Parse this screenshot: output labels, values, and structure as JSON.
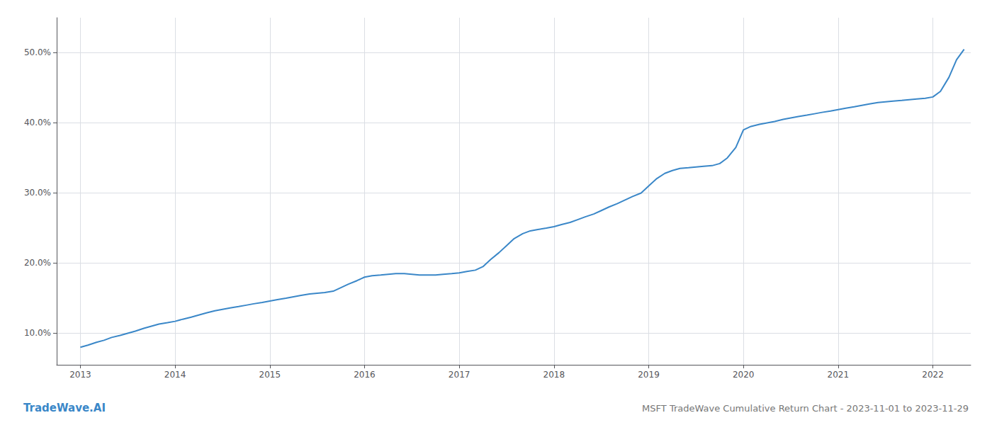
{
  "chart_data": {
    "type": "line",
    "title": "MSFT TradeWave Cumulative Return Chart - 2023-11-01 to 2023-11-29",
    "annotations": [
      "TradeWave.AI"
    ],
    "color": "#3a87c8",
    "x": [
      2013.0,
      2013.08,
      2013.17,
      2013.25,
      2013.33,
      2013.42,
      2013.5,
      2013.58,
      2013.67,
      2013.75,
      2013.83,
      2013.92,
      2014.0,
      2014.08,
      2014.17,
      2014.25,
      2014.33,
      2014.42,
      2014.5,
      2014.58,
      2014.67,
      2014.75,
      2014.83,
      2014.92,
      2015.0,
      2015.08,
      2015.17,
      2015.25,
      2015.33,
      2015.42,
      2015.5,
      2015.58,
      2015.67,
      2015.75,
      2015.83,
      2015.92,
      2016.0,
      2016.08,
      2016.17,
      2016.25,
      2016.33,
      2016.42,
      2016.5,
      2016.58,
      2016.67,
      2016.75,
      2016.83,
      2016.92,
      2017.0,
      2017.08,
      2017.17,
      2017.25,
      2017.33,
      2017.42,
      2017.5,
      2017.58,
      2017.67,
      2017.75,
      2017.83,
      2017.92,
      2018.0,
      2018.08,
      2018.17,
      2018.25,
      2018.33,
      2018.42,
      2018.5,
      2018.58,
      2018.67,
      2018.75,
      2018.83,
      2018.92,
      2019.0,
      2019.08,
      2019.17,
      2019.25,
      2019.33,
      2019.42,
      2019.5,
      2019.58,
      2019.67,
      2019.75,
      2019.83,
      2019.92,
      2020.0,
      2020.08,
      2020.17,
      2020.25,
      2020.33,
      2020.42,
      2020.5,
      2020.58,
      2020.67,
      2020.75,
      2020.83,
      2020.92,
      2021.0,
      2021.08,
      2021.17,
      2021.25,
      2021.33,
      2021.42,
      2021.5,
      2021.58,
      2021.67,
      2021.75,
      2021.83,
      2021.92,
      2022.0,
      2022.08,
      2022.17,
      2022.25,
      2022.33
    ],
    "values": [
      8.0,
      8.3,
      8.7,
      9.0,
      9.4,
      9.7,
      10.0,
      10.3,
      10.7,
      11.0,
      11.3,
      11.5,
      11.7,
      12.0,
      12.3,
      12.6,
      12.9,
      13.2,
      13.4,
      13.6,
      13.8,
      14.0,
      14.2,
      14.4,
      14.6,
      14.8,
      15.0,
      15.2,
      15.4,
      15.6,
      15.7,
      15.8,
      16.0,
      16.5,
      17.0,
      17.5,
      18.0,
      18.2,
      18.3,
      18.4,
      18.5,
      18.5,
      18.4,
      18.3,
      18.3,
      18.3,
      18.4,
      18.5,
      18.6,
      18.8,
      19.0,
      19.5,
      20.5,
      21.5,
      22.5,
      23.5,
      24.2,
      24.6,
      24.8,
      25.0,
      25.2,
      25.5,
      25.8,
      26.2,
      26.6,
      27.0,
      27.5,
      28.0,
      28.5,
      29.0,
      29.5,
      30.0,
      31.0,
      32.0,
      32.8,
      33.2,
      33.5,
      33.6,
      33.7,
      33.8,
      33.9,
      34.2,
      35.0,
      36.5,
      39.0,
      39.5,
      39.8,
      40.0,
      40.2,
      40.5,
      40.7,
      40.9,
      41.1,
      41.3,
      41.5,
      41.7,
      41.9,
      42.1,
      42.3,
      42.5,
      42.7,
      42.9,
      43.0,
      43.1,
      43.2,
      43.3,
      43.4,
      43.5,
      43.7,
      44.5,
      46.5,
      49.0,
      50.5
    ],
    "xlim": [
      2012.75,
      2022.4
    ],
    "xticks": [
      2013,
      2014,
      2015,
      2016,
      2017,
      2018,
      2019,
      2020,
      2021,
      2022
    ],
    "ylim": [
      5.5,
      55.0
    ],
    "yticks": [
      {
        "value": 10.0,
        "label": "10.0%"
      },
      {
        "value": 20.0,
        "label": "20.0%"
      },
      {
        "value": 30.0,
        "label": "30.0%"
      },
      {
        "value": 40.0,
        "label": "40.0%"
      },
      {
        "value": 50.0,
        "label": "50.0%"
      }
    ],
    "grid": true
  }
}
